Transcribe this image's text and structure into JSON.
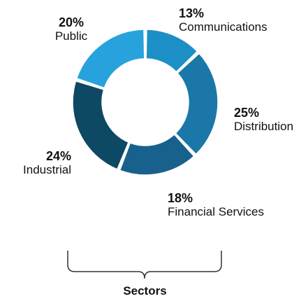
{
  "chart_data": {
    "type": "pie",
    "slices": [
      {
        "category": "Communications",
        "value": 13,
        "label": "13%",
        "color": "#1b8fc6"
      },
      {
        "category": "Distribution",
        "value": 25,
        "label": "25%",
        "color": "#1a77a8"
      },
      {
        "category": "Financial Services",
        "value": 18,
        "label": "18%",
        "color": "#17618c"
      },
      {
        "category": "Industrial",
        "value": 24,
        "label": "24%",
        "color": "#0d4865"
      },
      {
        "category": "Public",
        "value": 20,
        "label": "20%",
        "color": "#27a2dc"
      }
    ],
    "xlabel": "Sectors",
    "legend": "none"
  }
}
